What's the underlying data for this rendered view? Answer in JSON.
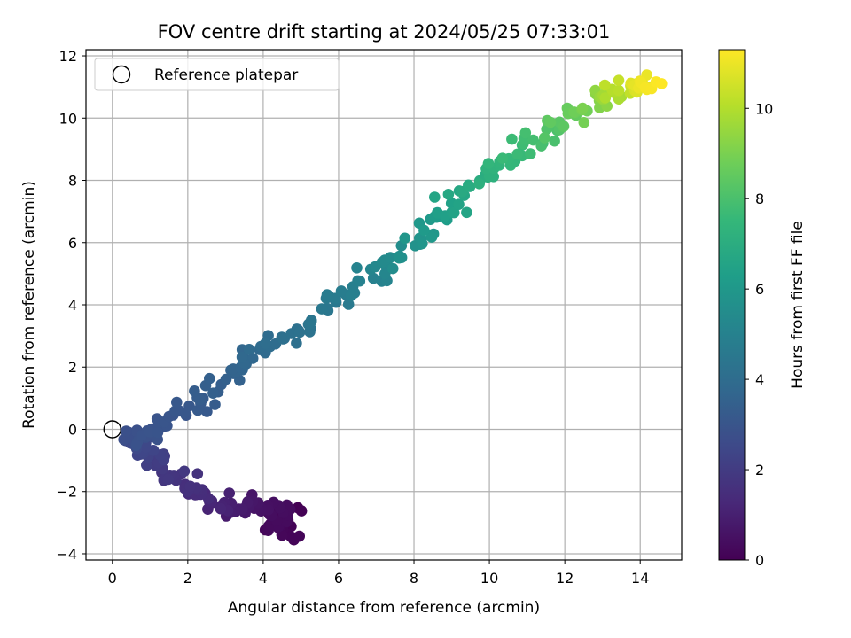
{
  "chart_data": {
    "type": "scatter",
    "title": "FOV centre drift starting at 2024/05/25 07:33:01",
    "xlabel": "Angular distance from reference (arcmin)",
    "ylabel": "Rotation from reference (arcmin)",
    "xlim": [
      -0.7,
      15.1
    ],
    "ylim": [
      -4.2,
      12.2
    ],
    "xticks": [
      0,
      2,
      4,
      6,
      8,
      10,
      12,
      14
    ],
    "yticks": [
      -4,
      -2,
      0,
      2,
      4,
      6,
      8,
      10,
      12
    ],
    "grid": true,
    "legend": {
      "placement": "top-left",
      "entries": [
        {
          "label": "Reference platepar",
          "marker": "open-circle"
        }
      ]
    },
    "reference_point": {
      "x": 0,
      "y": 0
    },
    "colorbar": {
      "label": "Hours from first FF file",
      "colormap": "viridis",
      "range": [
        0,
        11.3
      ],
      "ticks": [
        0,
        2,
        4,
        6,
        8,
        10
      ]
    },
    "colormap_stops": [
      "#440154",
      "#482878",
      "#3e4989",
      "#31688e",
      "#26828e",
      "#1f9e89",
      "#35b779",
      "#6ece58",
      "#b5de2b",
      "#fde725"
    ],
    "anchors": [
      [
        4.8,
        -2.5,
        0.0
      ],
      [
        4.6,
        -3.4,
        0.1
      ],
      [
        4.3,
        -3.1,
        0.25
      ],
      [
        4.55,
        -2.7,
        0.35
      ],
      [
        3.8,
        -2.4,
        0.6
      ],
      [
        3.2,
        -2.5,
        0.9
      ],
      [
        2.6,
        -2.3,
        1.2
      ],
      [
        2.2,
        -1.9,
        1.5
      ],
      [
        1.7,
        -1.4,
        1.8
      ],
      [
        1.2,
        -1.0,
        2.1
      ],
      [
        0.8,
        -0.6,
        2.4
      ],
      [
        0.45,
        -0.3,
        2.7
      ],
      [
        0.9,
        -0.2,
        2.9
      ],
      [
        1.8,
        0.5,
        3.0
      ],
      [
        2.4,
        1.1,
        3.3
      ],
      [
        3.3,
        1.9,
        3.6
      ],
      [
        4.0,
        2.6,
        3.9
      ],
      [
        4.9,
        3.1,
        4.2
      ],
      [
        5.8,
        4.0,
        4.6
      ],
      [
        6.7,
        4.8,
        5.0
      ],
      [
        7.6,
        5.6,
        5.5
      ],
      [
        8.3,
        6.3,
        6.0
      ],
      [
        9.0,
        7.2,
        6.5
      ],
      [
        9.8,
        8.0,
        7.0
      ],
      [
        10.5,
        8.7,
        7.5
      ],
      [
        11.3,
        9.4,
        7.9
      ],
      [
        12.0,
        10.0,
        8.5
      ],
      [
        12.8,
        10.6,
        9.2
      ],
      [
        13.4,
        10.8,
        10.0
      ],
      [
        14.0,
        11.1,
        10.8
      ],
      [
        14.3,
        11.0,
        11.3
      ]
    ],
    "point_count": 360,
    "point_spread": [
      0.34,
      0.26
    ]
  }
}
